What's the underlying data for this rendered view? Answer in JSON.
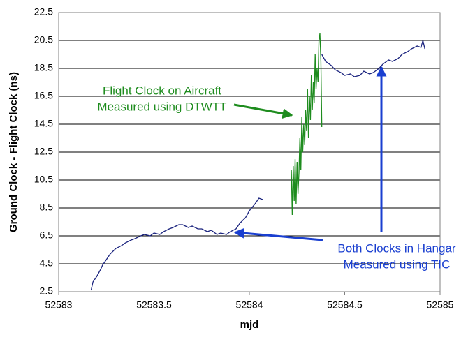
{
  "chart_data": {
    "type": "line",
    "xlabel": "mjd",
    "ylabel": "Ground Clock - Flight Clock (ns)",
    "xlim": [
      52583,
      52585
    ],
    "xticks": [
      52583,
      52583.5,
      52584,
      52584.5,
      52585
    ],
    "ylim": [
      2.5,
      22.5
    ],
    "yticks": [
      2.5,
      4.5,
      6.5,
      8.5,
      10.5,
      12.5,
      14.5,
      16.5,
      18.5,
      20.5,
      22.5
    ],
    "grid": true,
    "series": [
      {
        "color": "#1a237e",
        "x": [
          52583.17,
          52583.18,
          52583.2,
          52583.22,
          52583.23,
          52583.25,
          52583.27,
          52583.3,
          52583.33,
          52583.35,
          52583.38,
          52583.4,
          52583.43,
          52583.45,
          52583.48,
          52583.5,
          52583.53,
          52583.55,
          52583.58,
          52583.6,
          52583.63,
          52583.65,
          52583.68,
          52583.7,
          52583.73,
          52583.75,
          52583.78,
          52583.8,
          52583.83,
          52583.85,
          52583.88,
          52583.9,
          52583.93,
          52583.95,
          52583.98,
          52584.0,
          52584.03,
          52584.05,
          52584.07,
          52584.2,
          52584.38,
          52584.4,
          52584.43,
          52584.45,
          52584.48,
          52584.5,
          52584.53,
          52584.55,
          52584.58,
          52584.6,
          52584.63,
          52584.65,
          52584.68,
          52584.7,
          52584.73,
          52584.75,
          52584.78,
          52584.8,
          52584.83,
          52584.85,
          52584.88,
          52584.9,
          52584.91,
          52584.92
        ],
        "values": [
          2.6,
          3.2,
          3.6,
          4.1,
          4.4,
          4.8,
          5.2,
          5.6,
          5.8,
          6.0,
          6.2,
          6.3,
          6.5,
          6.6,
          6.5,
          6.7,
          6.6,
          6.8,
          7.0,
          7.1,
          7.3,
          7.3,
          7.1,
          7.2,
          7.0,
          7.0,
          6.8,
          6.9,
          6.6,
          6.7,
          6.6,
          6.8,
          7.0,
          7.4,
          7.8,
          8.3,
          8.8,
          9.2,
          9.1,
          null,
          19.5,
          19.0,
          18.7,
          18.4,
          18.2,
          18.0,
          18.1,
          17.9,
          18.0,
          18.3,
          18.1,
          18.2,
          18.5,
          18.8,
          19.1,
          19.0,
          19.2,
          19.5,
          19.7,
          19.9,
          20.1,
          20.0,
          20.5,
          19.9
        ]
      },
      {
        "color": "#1e8c1e",
        "x": [
          52584.22,
          52584.225,
          52584.23,
          52584.235,
          52584.24,
          52584.245,
          52584.25,
          52584.255,
          52584.26,
          52584.265,
          52584.27,
          52584.275,
          52584.28,
          52584.285,
          52584.29,
          52584.295,
          52584.3,
          52584.305,
          52584.31,
          52584.315,
          52584.32,
          52584.325,
          52584.33,
          52584.335,
          52584.34,
          52584.345,
          52584.35,
          52584.355,
          52584.36,
          52584.365,
          52584.37,
          52584.375,
          52584.38
        ],
        "values": [
          11.2,
          8.0,
          11.5,
          9.0,
          12.0,
          8.8,
          11.8,
          9.5,
          11.0,
          13.5,
          11.2,
          15.0,
          12.5,
          14.5,
          13.0,
          15.5,
          14.0,
          17.0,
          13.5,
          16.5,
          14.8,
          18.0,
          15.5,
          17.5,
          16.0,
          19.5,
          17.0,
          18.5,
          17.5,
          20.5,
          21.0,
          19.0,
          14.3
        ]
      }
    ],
    "annotations": [
      {
        "lines": [
          "Flight Clock on Aircraft",
          "Measured using DTWTT"
        ],
        "color": "#1e8c1e"
      },
      {
        "lines": [
          "Both Clocks in Hangar",
          "Measured using TIC"
        ],
        "color": "#1a3fd0"
      }
    ]
  }
}
